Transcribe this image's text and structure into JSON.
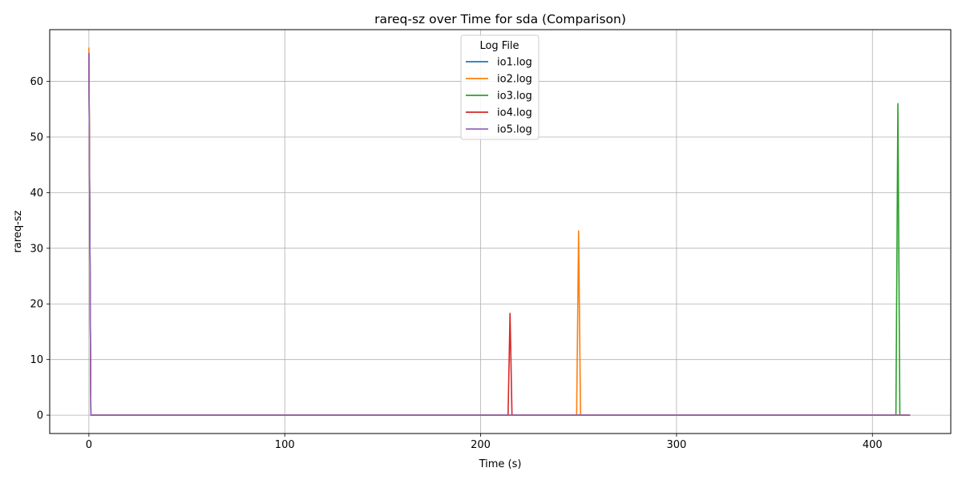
{
  "chart_data": {
    "type": "line",
    "title": "rareq-sz over Time for sda (Comparison)",
    "xlabel": "Time (s)",
    "ylabel": "rareq-sz",
    "xlim": [
      -20,
      440
    ],
    "ylim": [
      -3.3,
      69.3
    ],
    "x_ticks": [
      0,
      100,
      200,
      300,
      400
    ],
    "y_ticks": [
      0,
      10,
      20,
      30,
      40,
      50,
      60
    ],
    "grid": true,
    "legend": {
      "title": "Log File",
      "placement": "top-center"
    },
    "series": [
      {
        "name": "io1.log",
        "color": "#1f77b4",
        "points": [
          [
            0,
            65
          ],
          [
            1,
            0
          ],
          [
            419,
            0
          ]
        ]
      },
      {
        "name": "io2.log",
        "color": "#ff7f0e",
        "points": [
          [
            0,
            66
          ],
          [
            1,
            0
          ],
          [
            249,
            0
          ],
          [
            250,
            33.1
          ],
          [
            251,
            0
          ],
          [
            419,
            0
          ]
        ]
      },
      {
        "name": "io3.log",
        "color": "#2ca02c",
        "points": [
          [
            0,
            65
          ],
          [
            1,
            0
          ],
          [
            412,
            0
          ],
          [
            413,
            56
          ],
          [
            414,
            0
          ],
          [
            419,
            0
          ]
        ]
      },
      {
        "name": "io4.log",
        "color": "#d62728",
        "points": [
          [
            0,
            65
          ],
          [
            1,
            0
          ],
          [
            214,
            0
          ],
          [
            215,
            18.3
          ],
          [
            216,
            0
          ],
          [
            419,
            0
          ]
        ]
      },
      {
        "name": "io5.log",
        "color": "#9467bd",
        "points": [
          [
            0,
            65
          ],
          [
            1,
            0
          ],
          [
            419,
            0
          ]
        ]
      }
    ]
  }
}
